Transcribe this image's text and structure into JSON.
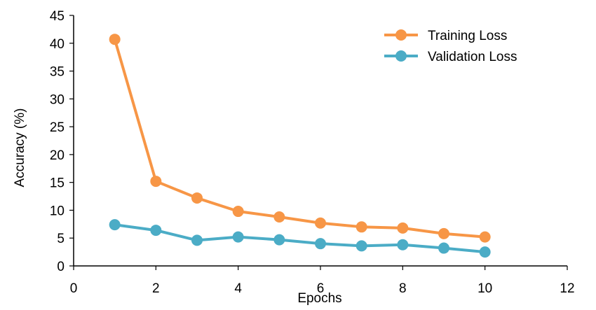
{
  "chart_data": {
    "type": "line",
    "title": "",
    "xlabel": "Epochs",
    "ylabel": "Accuracy (%)",
    "xlim": [
      0,
      12
    ],
    "ylim": [
      0,
      45
    ],
    "x_ticks": [
      0,
      2,
      4,
      6,
      8,
      10,
      12
    ],
    "y_ticks": [
      0,
      5,
      10,
      15,
      20,
      25,
      30,
      35,
      40,
      45
    ],
    "grid": false,
    "legend_position": "top-right",
    "x": [
      1,
      2,
      3,
      4,
      5,
      6,
      7,
      8,
      9,
      10
    ],
    "series": [
      {
        "name": "Training Loss",
        "color": "#F79646",
        "values": [
          40.7,
          15.2,
          12.2,
          9.8,
          8.8,
          7.7,
          7.0,
          6.8,
          5.8,
          5.2
        ]
      },
      {
        "name": "Validation Loss",
        "color": "#4BACC6",
        "values": [
          7.4,
          6.4,
          4.6,
          5.2,
          4.7,
          4.0,
          3.6,
          3.8,
          3.2,
          2.5
        ]
      }
    ]
  }
}
